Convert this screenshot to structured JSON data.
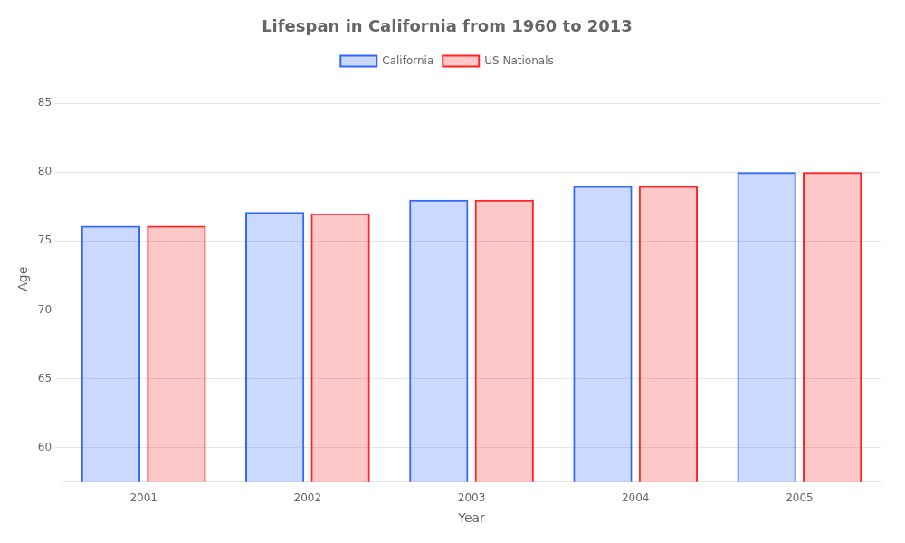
{
  "chart_data": {
    "type": "bar",
    "title": "Lifespan in California from 1960 to 2013",
    "x_label": "Year",
    "y_label": "Age",
    "categories": [
      "2001",
      "2002",
      "2003",
      "2004",
      "2005"
    ],
    "series": [
      {
        "name": "California",
        "color": "#3366ff",
        "values": [
          76.1,
          77.1,
          78.0,
          79.0,
          80.0
        ]
      },
      {
        "name": "US Nationals",
        "color": "#ff2222",
        "values": [
          76.1,
          77.0,
          78.0,
          79.0,
          80.0
        ]
      }
    ],
    "ylim": [
      57.5,
      87
    ],
    "yticks": [
      60,
      65,
      70,
      75,
      80,
      85
    ],
    "grid": true,
    "legend": "top"
  }
}
